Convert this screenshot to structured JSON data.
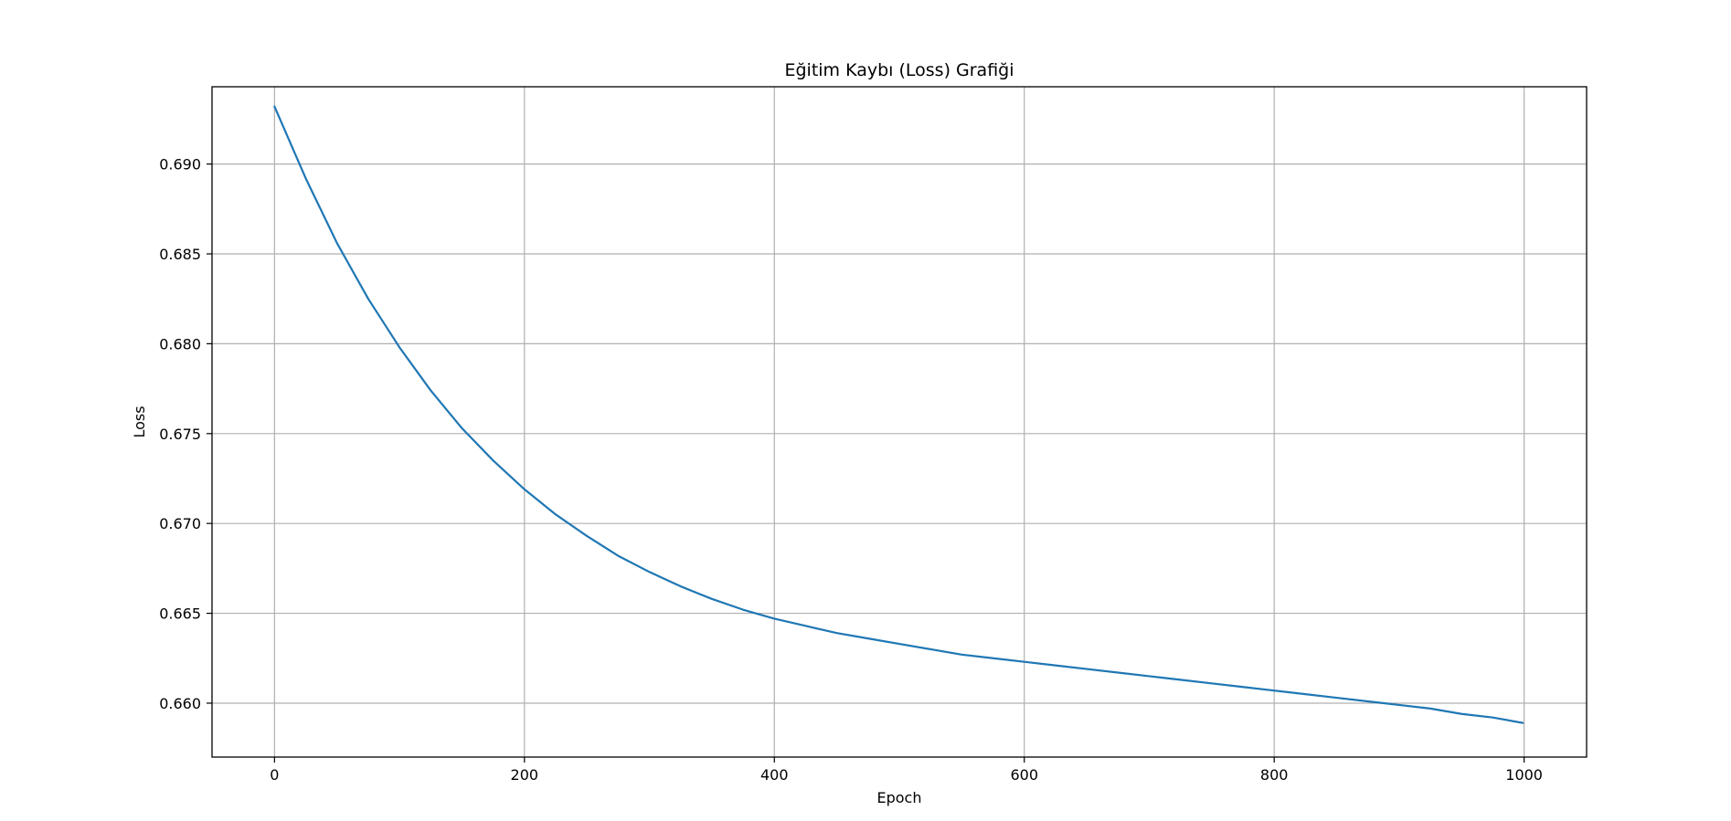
{
  "chart_data": {
    "type": "line",
    "title": "Eğitim Kaybı (Loss) Grafiği",
    "xlabel": "Epoch",
    "ylabel": "Loss",
    "xlim": [
      -50,
      1050
    ],
    "ylim": [
      0.657,
      0.6943
    ],
    "x_ticks": [
      0,
      200,
      400,
      600,
      800,
      1000
    ],
    "x_tick_labels": [
      "0",
      "200",
      "400",
      "600",
      "800",
      "1000"
    ],
    "y_ticks": [
      0.66,
      0.665,
      0.67,
      0.675,
      0.68,
      0.685,
      0.69
    ],
    "y_tick_labels": [
      "0.660",
      "0.665",
      "0.670",
      "0.675",
      "0.680",
      "0.685",
      "0.690"
    ],
    "grid": true,
    "line_color": "#1f77b4",
    "series": [
      {
        "x": [
          0,
          25,
          50,
          75,
          100,
          125,
          150,
          175,
          200,
          225,
          250,
          275,
          300,
          325,
          350,
          375,
          400,
          425,
          450,
          475,
          500,
          525,
          550,
          575,
          600,
          625,
          650,
          675,
          700,
          725,
          750,
          775,
          800,
          825,
          850,
          875,
          900,
          925,
          950,
          975,
          999
        ],
        "y": [
          0.6932,
          0.6892,
          0.6856,
          0.6825,
          0.6798,
          0.6774,
          0.6753,
          0.6735,
          0.6719,
          0.6705,
          0.6693,
          0.6682,
          0.6673,
          0.6665,
          0.6658,
          0.6652,
          0.6647,
          0.6643,
          0.6639,
          0.6636,
          0.6633,
          0.663,
          0.6627,
          0.6625,
          0.6623,
          0.6621,
          0.6619,
          0.6617,
          0.6615,
          0.6613,
          0.6611,
          0.6609,
          0.6607,
          0.6605,
          0.6603,
          0.6601,
          0.6599,
          0.6597,
          0.6594,
          0.6592,
          0.6589
        ]
      }
    ]
  }
}
